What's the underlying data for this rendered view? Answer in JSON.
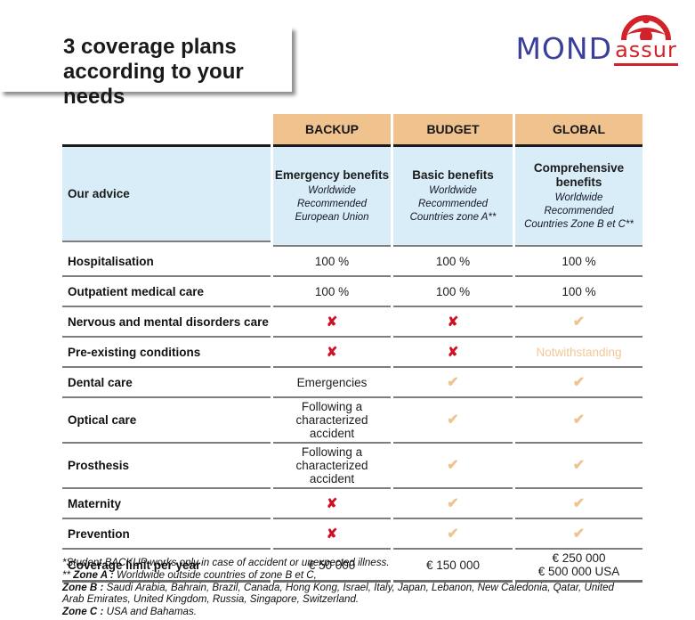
{
  "header": {
    "title_line1": "3 coverage plans",
    "title_line2": "according to your needs"
  },
  "logo": {
    "mond": "MOND",
    "assur": "assur"
  },
  "colors": {
    "band_orange": "#efc28e",
    "band_blue": "#d8edf8",
    "cross_red": "#ce1126",
    "check_tan": "#f0c28e",
    "logo_blue": "#3a3f99",
    "logo_red": "#d2232a"
  },
  "glyphs": {
    "check": "✔",
    "cross": "✘"
  },
  "table": {
    "plans": [
      "BACKUP",
      "BUDGET",
      "GLOBAL"
    ],
    "advice_label": "Our advice",
    "advice": [
      {
        "title": "Emergency benefits",
        "lines": [
          "Worldwide",
          "Recommended",
          "European Union"
        ]
      },
      {
        "title": "Basic benefits",
        "lines": [
          "Worldwide",
          "Recommended",
          "Countries zone A**"
        ]
      },
      {
        "title": "Comprehensive benefits",
        "lines": [
          "Worldwide",
          "Recommended",
          "Countries Zone B et C**"
        ]
      }
    ],
    "rows": [
      {
        "label": "Hospitalisation",
        "cells": [
          {
            "kind": "text",
            "lines": [
              "100 %"
            ]
          },
          {
            "kind": "text",
            "lines": [
              "100 %"
            ]
          },
          {
            "kind": "text",
            "lines": [
              "100 %"
            ]
          }
        ]
      },
      {
        "label": "Outpatient medical care",
        "cells": [
          {
            "kind": "text",
            "lines": [
              "100 %"
            ]
          },
          {
            "kind": "text",
            "lines": [
              "100 %"
            ]
          },
          {
            "kind": "text",
            "lines": [
              "100 %"
            ]
          }
        ]
      },
      {
        "label": "Nervous and mental disorders care",
        "cells": [
          {
            "kind": "cross"
          },
          {
            "kind": "cross"
          },
          {
            "kind": "check"
          }
        ]
      },
      {
        "label": "Pre-existing conditions",
        "cells": [
          {
            "kind": "cross"
          },
          {
            "kind": "cross"
          },
          {
            "kind": "accent-text",
            "lines": [
              "Notwithstanding"
            ]
          }
        ]
      },
      {
        "label": "Dental care",
        "cells": [
          {
            "kind": "text",
            "lines": [
              "Emergencies"
            ]
          },
          {
            "kind": "check"
          },
          {
            "kind": "check"
          }
        ]
      },
      {
        "label": "Optical care",
        "cells": [
          {
            "kind": "text",
            "lines": [
              "Following a",
              "characterized accident"
            ]
          },
          {
            "kind": "check"
          },
          {
            "kind": "check"
          }
        ]
      },
      {
        "label": "Prosthesis",
        "cells": [
          {
            "kind": "text",
            "lines": [
              "Following a",
              "characterized accident"
            ]
          },
          {
            "kind": "check"
          },
          {
            "kind": "check"
          }
        ]
      },
      {
        "label": "Maternity",
        "cells": [
          {
            "kind": "cross"
          },
          {
            "kind": "check"
          },
          {
            "kind": "check"
          }
        ]
      },
      {
        "label": "Prevention",
        "cells": [
          {
            "kind": "cross"
          },
          {
            "kind": "check"
          },
          {
            "kind": "check"
          }
        ]
      },
      {
        "label": "Coverage limit per year",
        "cells": [
          {
            "kind": "text",
            "lines": [
              "€ 50 000"
            ]
          },
          {
            "kind": "text",
            "lines": [
              "€ 150 000"
            ]
          },
          {
            "kind": "text",
            "lines": [
              "€ 250 000",
              "€ 500 000 USA"
            ]
          }
        ]
      }
    ]
  },
  "footnotes": [
    {
      "pre": "",
      "bold": "",
      "text": "*Student BACKUP works only in case of accident or unexpected illness."
    },
    {
      "pre": "** ",
      "bold": "Zone A :",
      "text": " Worldwide outside countries of zone B et C,"
    },
    {
      "pre": "",
      "bold": "Zone B :",
      "text": " Saudi Arabia, Bahrain, Brazil, Canada, Hong Kong, Israel, Italy, Japan, Lebanon, New Caledonia, Qatar, United Arab Emirates, United Kingdom, Russia, Singapore, Switzerland."
    },
    {
      "pre": "",
      "bold": "Zone C :",
      "text": " USA and Bahamas."
    }
  ]
}
